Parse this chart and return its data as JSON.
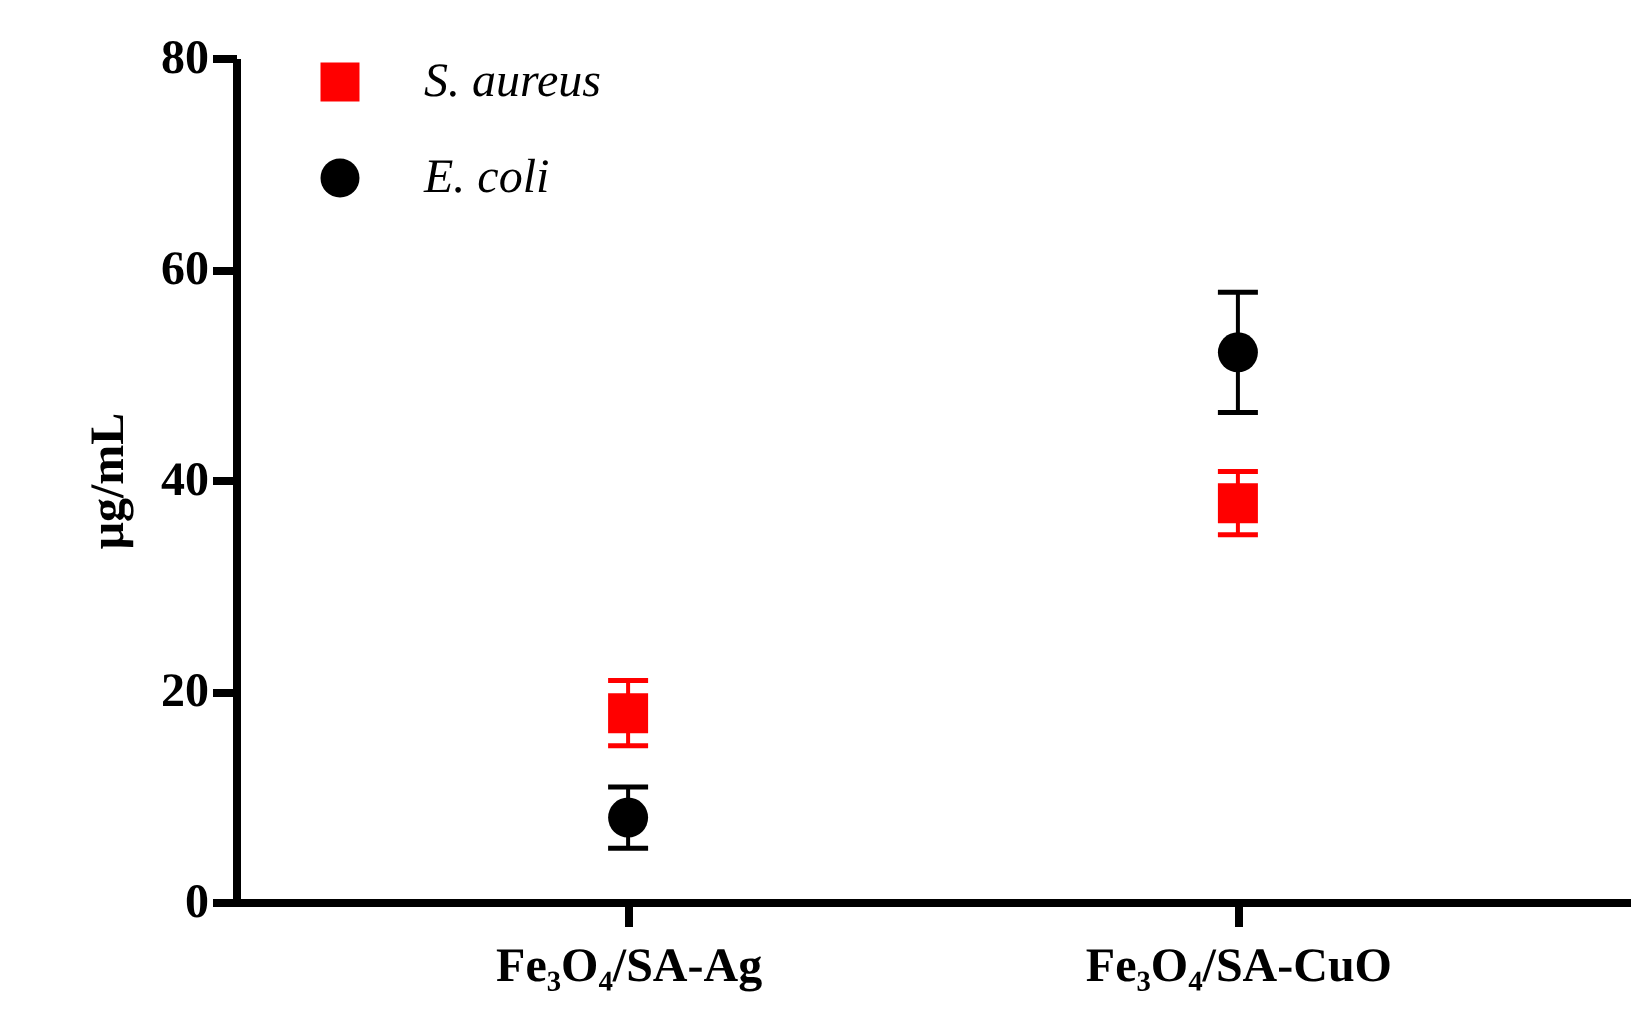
{
  "chart_data": {
    "type": "scatter",
    "ylabel": "μg/mL",
    "categories": [
      "Fe₃O₄/SA-Ag",
      "Fe₃O₄/SA-CuO"
    ],
    "series": [
      {
        "name": "S. aureus",
        "color": "#ff0000",
        "marker": "square",
        "values": [
          17.9,
          37.8
        ],
        "errors": [
          3.1,
          3.0
        ]
      },
      {
        "name": "E. coli",
        "color": "#000000",
        "marker": "circle",
        "values": [
          8.0,
          52.1
        ],
        "errors": [
          2.9,
          5.7
        ]
      }
    ],
    "ylim": [
      0,
      80
    ],
    "yticks": [
      0,
      20,
      40,
      60,
      80
    ],
    "grid": false,
    "legend": "top left"
  }
}
